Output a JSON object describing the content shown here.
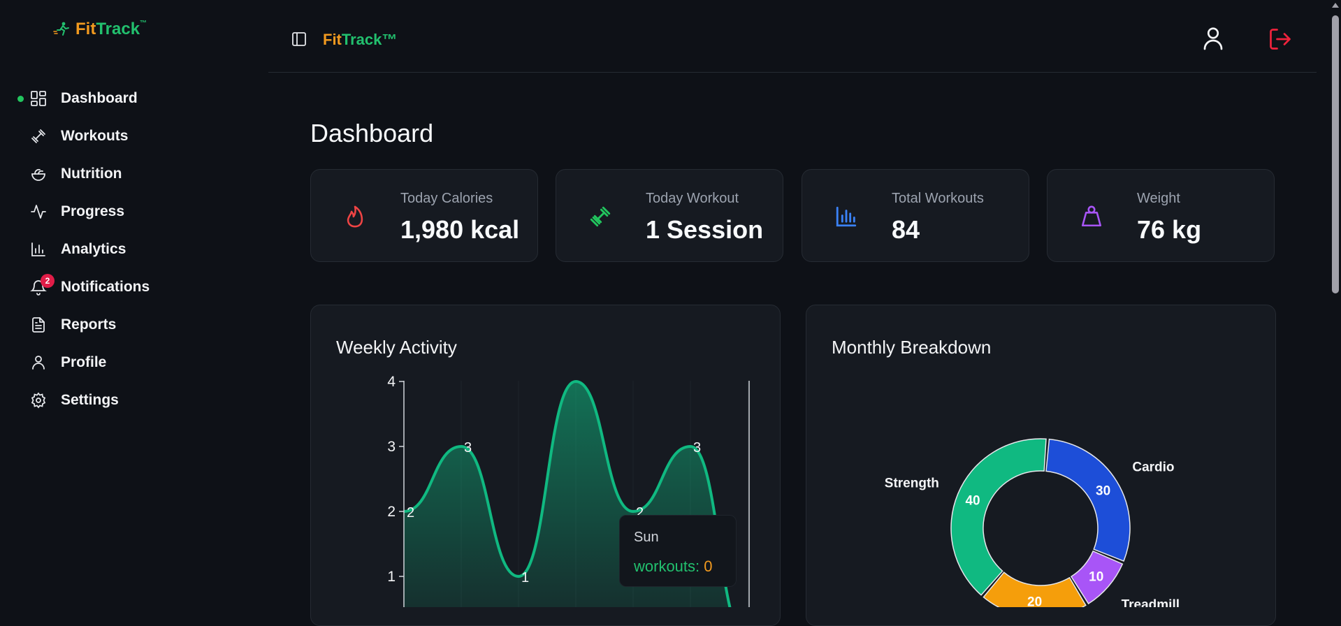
{
  "brand": {
    "fit": "Fit",
    "track": "Track"
  },
  "header": {
    "title_fit": "Fit",
    "title_track": "Track™"
  },
  "sidebar": {
    "items": [
      {
        "label": "Dashboard",
        "icon": "dashboard-icon",
        "active": true
      },
      {
        "label": "Workouts",
        "icon": "dumbbell-icon"
      },
      {
        "label": "Nutrition",
        "icon": "salad-icon"
      },
      {
        "label": "Progress",
        "icon": "activity-icon"
      },
      {
        "label": "Analytics",
        "icon": "bar-chart-icon"
      },
      {
        "label": "Notifications",
        "icon": "bell-icon",
        "badge": "2"
      },
      {
        "label": "Reports",
        "icon": "file-icon"
      },
      {
        "label": "Profile",
        "icon": "user-icon"
      },
      {
        "label": "Settings",
        "icon": "gear-icon"
      }
    ]
  },
  "page": {
    "title": "Dashboard"
  },
  "stats": [
    {
      "label": "Today Calories",
      "value": "1,980 kcal",
      "icon": "flame-icon",
      "color": "#ef4444"
    },
    {
      "label": "Today Workout",
      "value": "1 Session",
      "icon": "dumbbell-icon",
      "color": "#22c55e"
    },
    {
      "label": "Total Workouts",
      "value": "84",
      "icon": "bar-chart-icon",
      "color": "#3b82f6"
    },
    {
      "label": "Weight",
      "value": "76 kg",
      "icon": "weight-icon",
      "color": "#a855f7"
    }
  ],
  "weekly": {
    "title": "Weekly Activity",
    "tooltip": {
      "title": "Sun",
      "key": "workouts",
      "value": "0"
    }
  },
  "monthly": {
    "title": "Monthly Breakdown"
  },
  "chart_data": [
    {
      "type": "area",
      "title": "Weekly Activity",
      "series": [
        {
          "values": [
            2,
            3,
            1,
            4,
            2,
            3,
            0
          ]
        }
      ],
      "point_labels": [
        "2",
        "3",
        "1",
        "",
        "2",
        "3",
        ""
      ],
      "y_ticks": [
        "1",
        "2",
        "3",
        "4"
      ],
      "ylim": [
        0,
        4
      ],
      "color": "#10b981"
    },
    {
      "type": "pie",
      "title": "Monthly Breakdown",
      "slices": [
        {
          "label": "Cardio",
          "value": 30,
          "color": "#1d4ed8"
        },
        {
          "label": "Treadmill",
          "value": 10,
          "color": "#a855f7"
        },
        {
          "label": "",
          "value": 20,
          "color": "#f59e0b"
        },
        {
          "label": "Strength",
          "value": 40,
          "color": "#10b981"
        }
      ]
    }
  ]
}
